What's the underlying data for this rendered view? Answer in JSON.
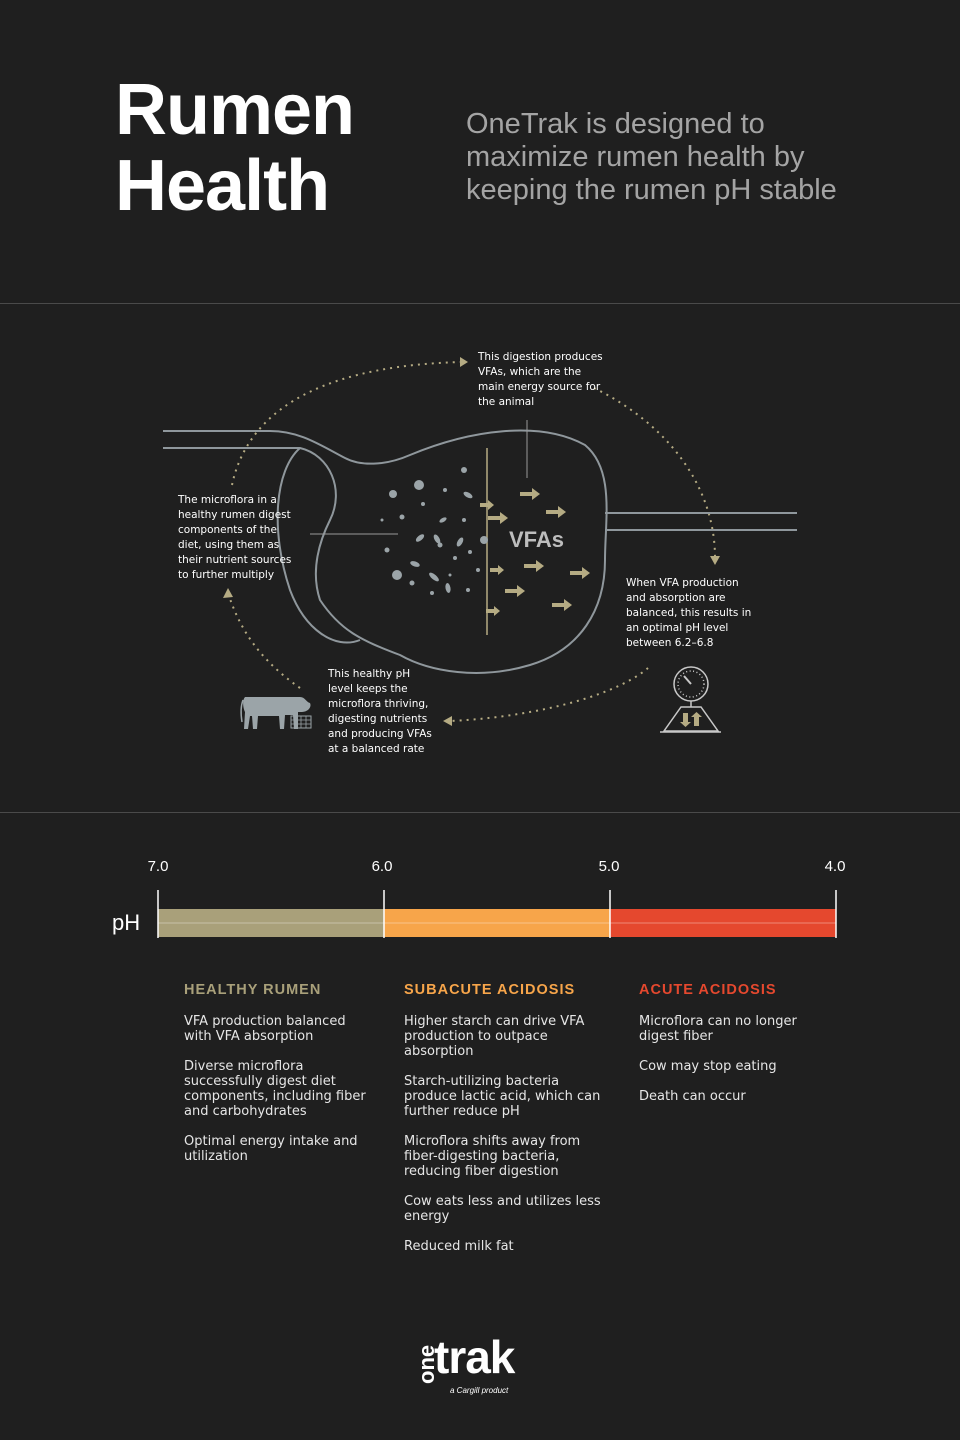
{
  "header": {
    "title_line1": "Rumen",
    "title_line2": "Health",
    "subtitle": "OneTrak is designed to maximize rumen health by keeping the rumen pH stable"
  },
  "diagram": {
    "vfa_label": "VFAs",
    "note_top": "This digestion produces VFAs, which are the main energy source for the animal",
    "note_left": "The microflora in a healthy rumen digest components of the diet, using them as their nutrient sources to further multiply",
    "note_right": "When VFA production and absorption are balanced, this results in an optimal pH level between 6.2–6.8",
    "note_bottom": "This healthy pH level keeps the microflora thriving, digesting nutrients and producing VFAs at a balanced rate",
    "icons": [
      "rumen-icon",
      "microflora-icon",
      "vfa-arrow-icon",
      "cow-icon",
      "ph-gauge-icon",
      "cycle-arrow-icon"
    ]
  },
  "ph_scale": {
    "label": "pH",
    "ticks": [
      "7.0",
      "6.0",
      "5.0",
      "4.0"
    ],
    "segments": [
      {
        "from": 7.0,
        "to": 6.0,
        "color": "#a9a07a"
      },
      {
        "from": 6.0,
        "to": 5.0,
        "color": "#f7a54a"
      },
      {
        "from": 5.0,
        "to": 4.0,
        "color": "#e5482e"
      }
    ]
  },
  "zones": [
    {
      "title": "HEALTHY RUMEN",
      "color": "#a9a07a",
      "items": [
        "VFA production balanced with VFA absorption",
        "Diverse microflora successfully digest diet components, including fiber and carbohydrates",
        "Optimal energy intake and utilization"
      ]
    },
    {
      "title": "SUBACUTE ACIDOSIS",
      "color": "#f7a54a",
      "items": [
        "Higher starch can drive VFA production to outpace absorption",
        "Starch-utilizing bacteria produce lactic acid, which can further reduce pH",
        "Microflora shifts away from fiber-digesting bacteria, reducing fiber digestion",
        "Cow eats less and utilizes less energy",
        "Reduced milk fat"
      ]
    },
    {
      "title": "ACUTE ACIDOSIS",
      "color": "#e5482e",
      "items": [
        "Microflora can no longer digest fiber",
        "Cow may stop eating",
        "Death can occur"
      ]
    }
  ],
  "logo": {
    "one": "one",
    "trak": "trak",
    "tagline": "a Cargill product"
  }
}
